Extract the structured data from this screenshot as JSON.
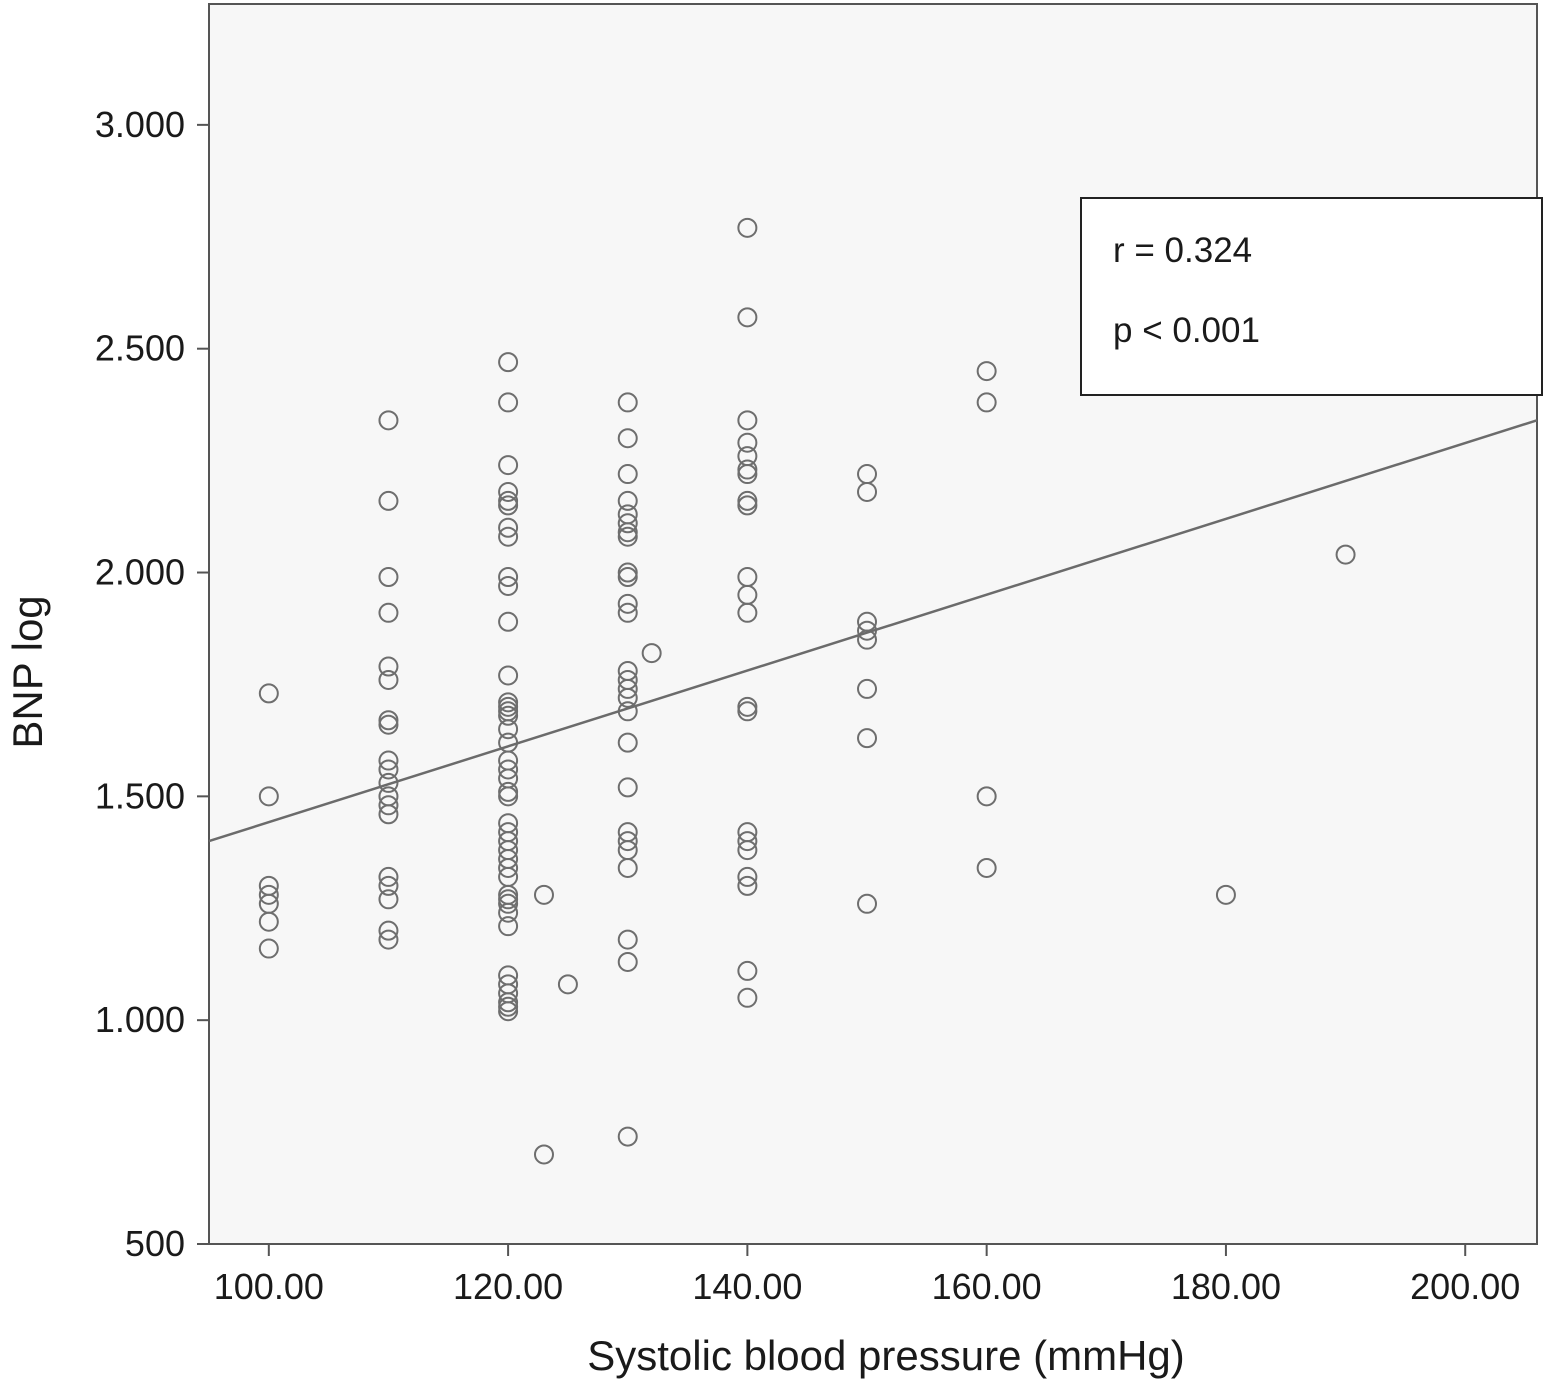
{
  "chart_data": {
    "type": "scatter",
    "title": "",
    "xlabel": "Systolic blood pressure (mmHg)",
    "ylabel": "BNP log",
    "xlim": [
      95,
      206
    ],
    "ylim": [
      500,
      3270
    ],
    "xticks": [
      100,
      120,
      140,
      160,
      180,
      200
    ],
    "xtick_labels": [
      "100.00",
      "120.00",
      "140.00",
      "160.00",
      "180.00",
      "200.00"
    ],
    "yticks": [
      500,
      1000,
      1500,
      2000,
      2500,
      3000
    ],
    "ytick_labels": [
      "500",
      "1.000",
      "1.500",
      "2.000",
      "2.500",
      "3.000"
    ],
    "grid": false,
    "legend": null,
    "fit_line": {
      "x": [
        95,
        206
      ],
      "y": [
        1400,
        2340
      ]
    },
    "annotations": [
      "r = 0.324",
      "p < 0.001"
    ],
    "colors": {
      "background": "#f7f7f7",
      "marker": "#6e6e6e",
      "line": "#6b6b6b",
      "axis": "#555555"
    },
    "points": [
      {
        "x": 100,
        "y": 1730
      },
      {
        "x": 100,
        "y": 1500
      },
      {
        "x": 100,
        "y": 1300
      },
      {
        "x": 100,
        "y": 1280
      },
      {
        "x": 100,
        "y": 1260
      },
      {
        "x": 100,
        "y": 1220
      },
      {
        "x": 100,
        "y": 1160
      },
      {
        "x": 110,
        "y": 2340
      },
      {
        "x": 110,
        "y": 2160
      },
      {
        "x": 110,
        "y": 1990
      },
      {
        "x": 110,
        "y": 1910
      },
      {
        "x": 110,
        "y": 1790
      },
      {
        "x": 110,
        "y": 1760
      },
      {
        "x": 110,
        "y": 1670
      },
      {
        "x": 110,
        "y": 1660
      },
      {
        "x": 110,
        "y": 1580
      },
      {
        "x": 110,
        "y": 1560
      },
      {
        "x": 110,
        "y": 1530
      },
      {
        "x": 110,
        "y": 1500
      },
      {
        "x": 110,
        "y": 1480
      },
      {
        "x": 110,
        "y": 1460
      },
      {
        "x": 110,
        "y": 1320
      },
      {
        "x": 110,
        "y": 1300
      },
      {
        "x": 110,
        "y": 1270
      },
      {
        "x": 110,
        "y": 1200
      },
      {
        "x": 110,
        "y": 1180
      },
      {
        "x": 120,
        "y": 2470
      },
      {
        "x": 120,
        "y": 2380
      },
      {
        "x": 120,
        "y": 2240
      },
      {
        "x": 120,
        "y": 2180
      },
      {
        "x": 120,
        "y": 2160
      },
      {
        "x": 120,
        "y": 2150
      },
      {
        "x": 120,
        "y": 2100
      },
      {
        "x": 120,
        "y": 2080
      },
      {
        "x": 120,
        "y": 1990
      },
      {
        "x": 120,
        "y": 1970
      },
      {
        "x": 120,
        "y": 1890
      },
      {
        "x": 120,
        "y": 1770
      },
      {
        "x": 120,
        "y": 1710
      },
      {
        "x": 120,
        "y": 1700
      },
      {
        "x": 120,
        "y": 1690
      },
      {
        "x": 120,
        "y": 1680
      },
      {
        "x": 120,
        "y": 1650
      },
      {
        "x": 120,
        "y": 1620
      },
      {
        "x": 120,
        "y": 1580
      },
      {
        "x": 120,
        "y": 1560
      },
      {
        "x": 120,
        "y": 1540
      },
      {
        "x": 120,
        "y": 1510
      },
      {
        "x": 120,
        "y": 1500
      },
      {
        "x": 120,
        "y": 1440
      },
      {
        "x": 120,
        "y": 1420
      },
      {
        "x": 120,
        "y": 1400
      },
      {
        "x": 120,
        "y": 1380
      },
      {
        "x": 120,
        "y": 1360
      },
      {
        "x": 120,
        "y": 1340
      },
      {
        "x": 120,
        "y": 1320
      },
      {
        "x": 120,
        "y": 1280
      },
      {
        "x": 120,
        "y": 1270
      },
      {
        "x": 120,
        "y": 1260
      },
      {
        "x": 120,
        "y": 1240
      },
      {
        "x": 120,
        "y": 1210
      },
      {
        "x": 120,
        "y": 1100
      },
      {
        "x": 120,
        "y": 1080
      },
      {
        "x": 120,
        "y": 1060
      },
      {
        "x": 120,
        "y": 1040
      },
      {
        "x": 120,
        "y": 1030
      },
      {
        "x": 120,
        "y": 1020
      },
      {
        "x": 123,
        "y": 1280
      },
      {
        "x": 123,
        "y": 700
      },
      {
        "x": 125,
        "y": 1080
      },
      {
        "x": 130,
        "y": 2380
      },
      {
        "x": 130,
        "y": 2300
      },
      {
        "x": 130,
        "y": 2220
      },
      {
        "x": 130,
        "y": 2160
      },
      {
        "x": 130,
        "y": 2130
      },
      {
        "x": 130,
        "y": 2110
      },
      {
        "x": 130,
        "y": 2090
      },
      {
        "x": 130,
        "y": 2080
      },
      {
        "x": 130,
        "y": 2000
      },
      {
        "x": 130,
        "y": 1990
      },
      {
        "x": 130,
        "y": 1930
      },
      {
        "x": 130,
        "y": 1910
      },
      {
        "x": 130,
        "y": 1780
      },
      {
        "x": 130,
        "y": 1760
      },
      {
        "x": 130,
        "y": 1740
      },
      {
        "x": 130,
        "y": 1720
      },
      {
        "x": 130,
        "y": 1690
      },
      {
        "x": 130,
        "y": 1620
      },
      {
        "x": 130,
        "y": 1520
      },
      {
        "x": 130,
        "y": 1420
      },
      {
        "x": 130,
        "y": 1400
      },
      {
        "x": 130,
        "y": 1380
      },
      {
        "x": 130,
        "y": 1340
      },
      {
        "x": 130,
        "y": 1180
      },
      {
        "x": 130,
        "y": 1130
      },
      {
        "x": 130,
        "y": 740
      },
      {
        "x": 132,
        "y": 1820
      },
      {
        "x": 140,
        "y": 2770
      },
      {
        "x": 140,
        "y": 2570
      },
      {
        "x": 140,
        "y": 2340
      },
      {
        "x": 140,
        "y": 2290
      },
      {
        "x": 140,
        "y": 2260
      },
      {
        "x": 140,
        "y": 2230
      },
      {
        "x": 140,
        "y": 2220
      },
      {
        "x": 140,
        "y": 2160
      },
      {
        "x": 140,
        "y": 2150
      },
      {
        "x": 140,
        "y": 1990
      },
      {
        "x": 140,
        "y": 1950
      },
      {
        "x": 140,
        "y": 1910
      },
      {
        "x": 140,
        "y": 1700
      },
      {
        "x": 140,
        "y": 1690
      },
      {
        "x": 140,
        "y": 1420
      },
      {
        "x": 140,
        "y": 1400
      },
      {
        "x": 140,
        "y": 1380
      },
      {
        "x": 140,
        "y": 1320
      },
      {
        "x": 140,
        "y": 1300
      },
      {
        "x": 140,
        "y": 1110
      },
      {
        "x": 140,
        "y": 1050
      },
      {
        "x": 150,
        "y": 2220
      },
      {
        "x": 150,
        "y": 2180
      },
      {
        "x": 150,
        "y": 1890
      },
      {
        "x": 150,
        "y": 1870
      },
      {
        "x": 150,
        "y": 1850
      },
      {
        "x": 150,
        "y": 1740
      },
      {
        "x": 150,
        "y": 1630
      },
      {
        "x": 150,
        "y": 1260
      },
      {
        "x": 160,
        "y": 2450
      },
      {
        "x": 160,
        "y": 2380
      },
      {
        "x": 160,
        "y": 1500
      },
      {
        "x": 160,
        "y": 1340
      },
      {
        "x": 180,
        "y": 1280
      },
      {
        "x": 190,
        "y": 2040
      }
    ]
  }
}
